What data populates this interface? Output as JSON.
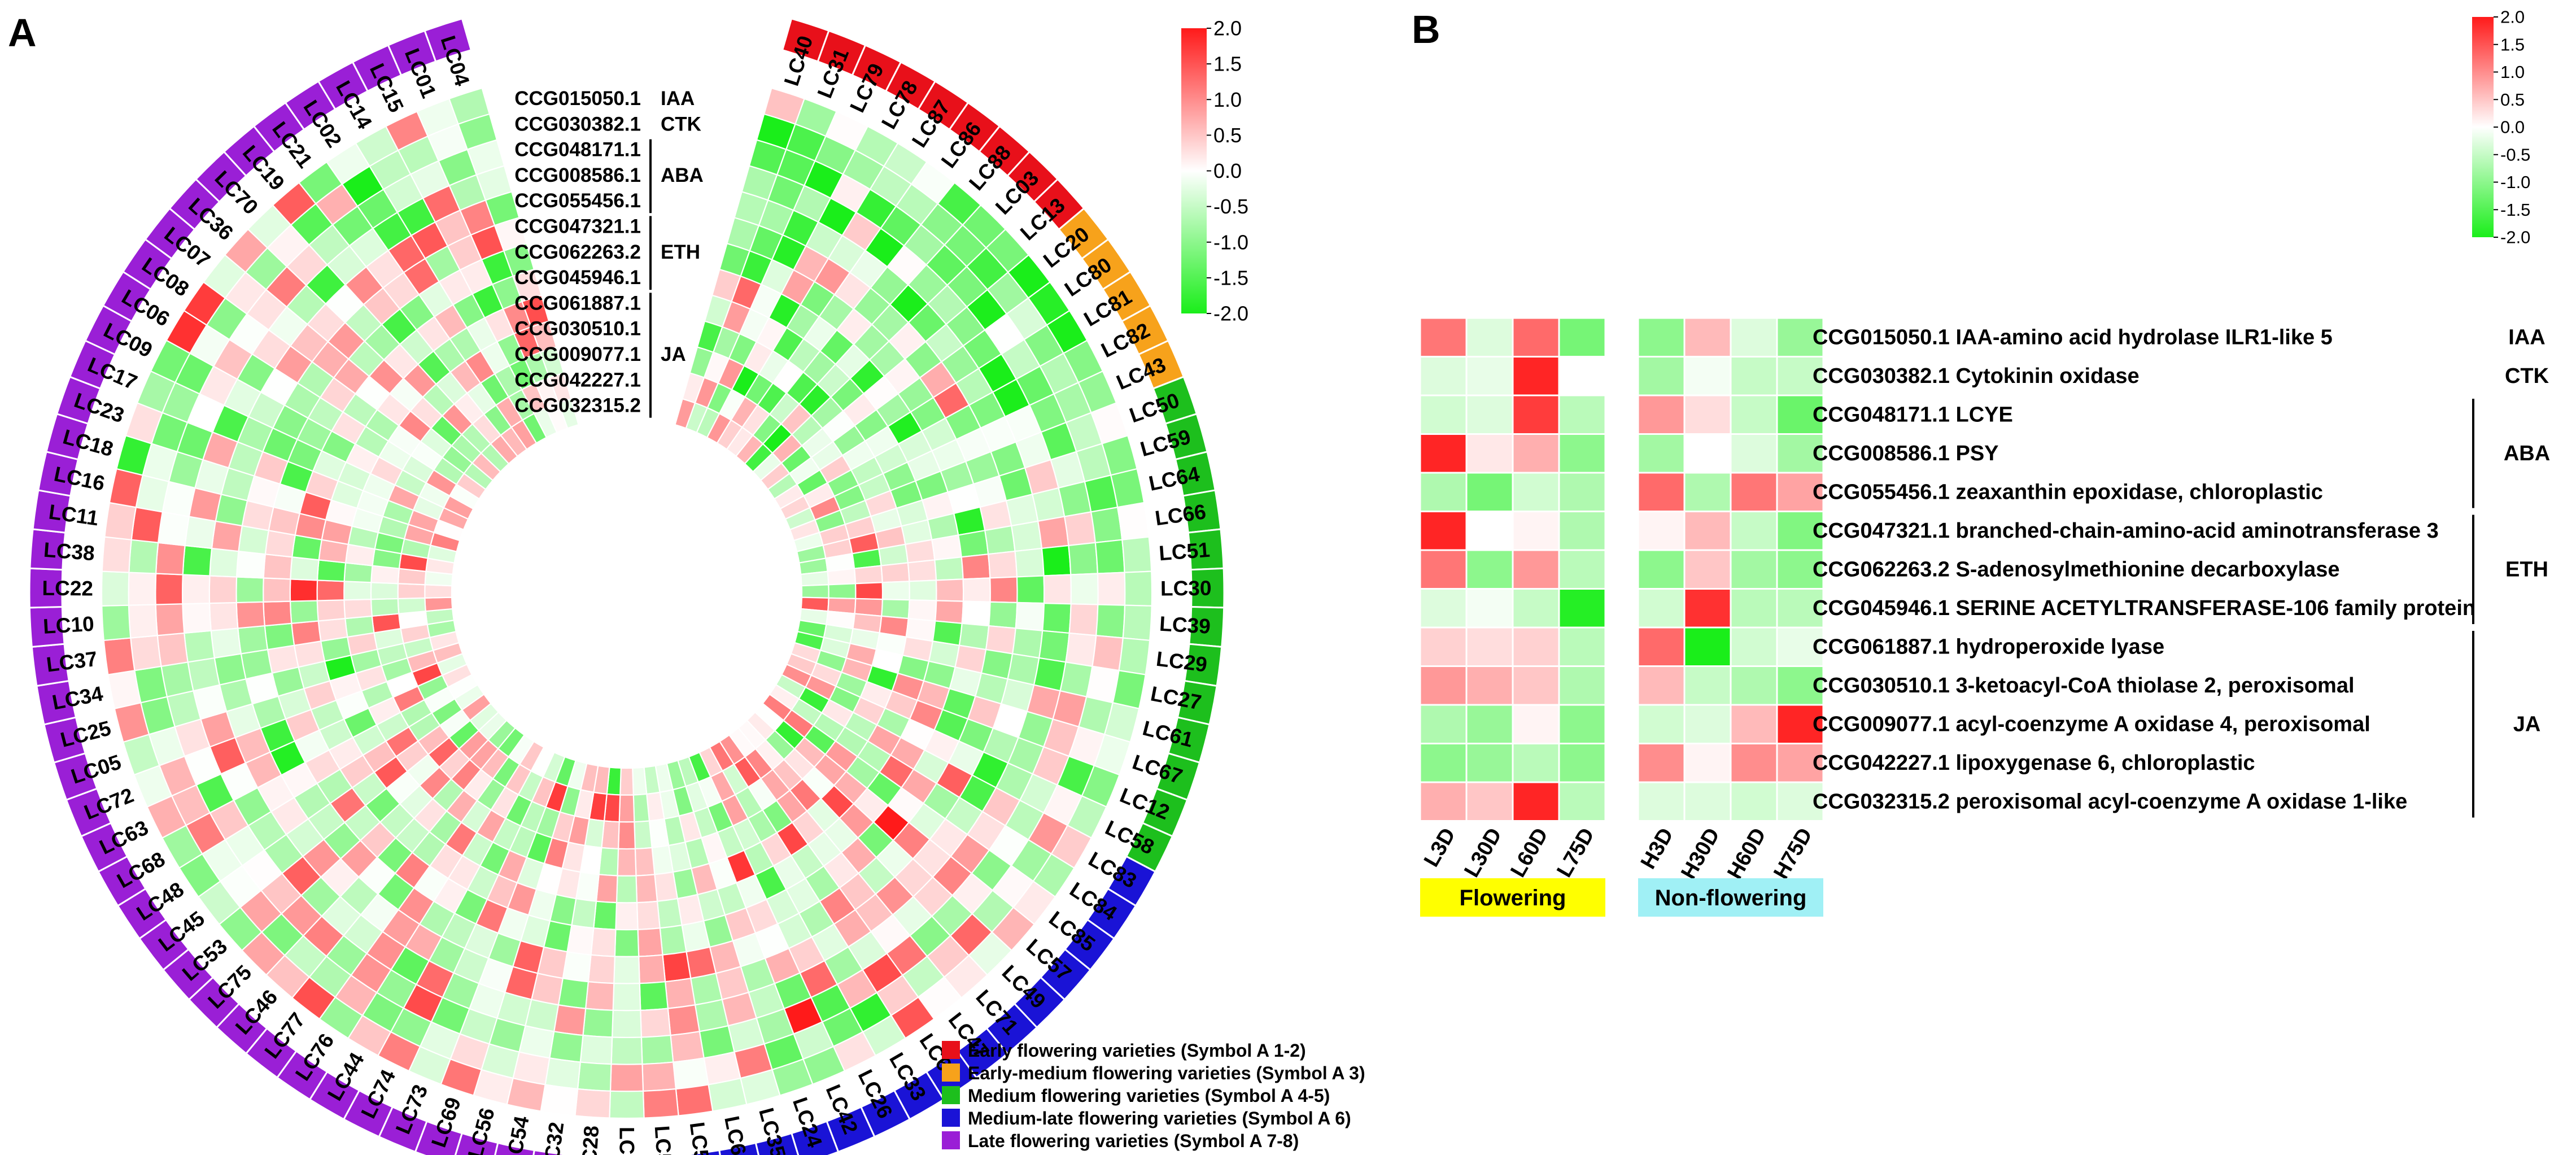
{
  "panel_a_letter": "A",
  "panel_b_letter": "B",
  "colors": {
    "early": "#e8101a",
    "early_medium": "#f7a21b",
    "medium": "#1dbf1d",
    "medium_late": "#1a13d6",
    "late": "#9a1fd6",
    "scale_high": "#ff1a1a",
    "scale_mid": "#ffffff",
    "scale_low": "#1aee1a",
    "flowering_box": "#ffff00",
    "nonflowering_box": "#a0f0f5"
  },
  "chart_data": [
    {
      "type": "heatmap",
      "layout": "circular",
      "title": "",
      "varieties": [
        {
          "name": "LC40",
          "group": "early"
        },
        {
          "name": "LC31",
          "group": "early"
        },
        {
          "name": "LC79",
          "group": "early"
        },
        {
          "name": "LC78",
          "group": "early"
        },
        {
          "name": "LC87",
          "group": "early"
        },
        {
          "name": "LC86",
          "group": "early"
        },
        {
          "name": "LC88",
          "group": "early"
        },
        {
          "name": "LC03",
          "group": "early"
        },
        {
          "name": "LC13",
          "group": "early"
        },
        {
          "name": "LC20",
          "group": "early_medium"
        },
        {
          "name": "LC80",
          "group": "early_medium"
        },
        {
          "name": "LC81",
          "group": "early_medium"
        },
        {
          "name": "LC82",
          "group": "early_medium"
        },
        {
          "name": "LC43",
          "group": "early_medium"
        },
        {
          "name": "LC50",
          "group": "medium"
        },
        {
          "name": "LC59",
          "group": "medium"
        },
        {
          "name": "LC64",
          "group": "medium"
        },
        {
          "name": "LC66",
          "group": "medium"
        },
        {
          "name": "LC51",
          "group": "medium"
        },
        {
          "name": "LC30",
          "group": "medium"
        },
        {
          "name": "LC39",
          "group": "medium"
        },
        {
          "name": "LC29",
          "group": "medium"
        },
        {
          "name": "LC27",
          "group": "medium"
        },
        {
          "name": "LC61",
          "group": "medium"
        },
        {
          "name": "LC67",
          "group": "medium"
        },
        {
          "name": "LC12",
          "group": "medium"
        },
        {
          "name": "LC58",
          "group": "medium"
        },
        {
          "name": "LC83",
          "group": "medium_late"
        },
        {
          "name": "LC84",
          "group": "medium_late"
        },
        {
          "name": "LC85",
          "group": "medium_late"
        },
        {
          "name": "LC57",
          "group": "medium_late"
        },
        {
          "name": "LC49",
          "group": "medium_late"
        },
        {
          "name": "LC71",
          "group": "medium_late"
        },
        {
          "name": "LC47",
          "group": "medium_late"
        },
        {
          "name": "LC60",
          "group": "medium_late"
        },
        {
          "name": "LC33",
          "group": "medium_late"
        },
        {
          "name": "LC26",
          "group": "medium_late"
        },
        {
          "name": "LC42",
          "group": "medium_late"
        },
        {
          "name": "LC24",
          "group": "medium_late"
        },
        {
          "name": "LC35",
          "group": "medium_late"
        },
        {
          "name": "LC65",
          "group": "medium_late"
        },
        {
          "name": "LC55",
          "group": "medium_late"
        },
        {
          "name": "LC52",
          "group": "medium_late"
        },
        {
          "name": "LC62",
          "group": "medium_late"
        },
        {
          "name": "LC28",
          "group": "late"
        },
        {
          "name": "LC32",
          "group": "late"
        },
        {
          "name": "LC54",
          "group": "late"
        },
        {
          "name": "LC56",
          "group": "late"
        },
        {
          "name": "LC69",
          "group": "late"
        },
        {
          "name": "LC73",
          "group": "late"
        },
        {
          "name": "LC74",
          "group": "late"
        },
        {
          "name": "LC44",
          "group": "late"
        },
        {
          "name": "LC76",
          "group": "late"
        },
        {
          "name": "LC77",
          "group": "late"
        },
        {
          "name": "LC46",
          "group": "late"
        },
        {
          "name": "LC75",
          "group": "late"
        },
        {
          "name": "LC53",
          "group": "late"
        },
        {
          "name": "LC45",
          "group": "late"
        },
        {
          "name": "LC48",
          "group": "late"
        },
        {
          "name": "LC68",
          "group": "late"
        },
        {
          "name": "LC63",
          "group": "late"
        },
        {
          "name": "LC72",
          "group": "late"
        },
        {
          "name": "LC05",
          "group": "late"
        },
        {
          "name": "LC25",
          "group": "late"
        },
        {
          "name": "LC34",
          "group": "late"
        },
        {
          "name": "LC37",
          "group": "late"
        },
        {
          "name": "LC10",
          "group": "late"
        },
        {
          "name": "LC22",
          "group": "late"
        },
        {
          "name": "LC38",
          "group": "late"
        },
        {
          "name": "LC11",
          "group": "late"
        },
        {
          "name": "LC16",
          "group": "late"
        },
        {
          "name": "LC18",
          "group": "late"
        },
        {
          "name": "LC23",
          "group": "late"
        },
        {
          "name": "LC17",
          "group": "late"
        },
        {
          "name": "LC09",
          "group": "late"
        },
        {
          "name": "LC06",
          "group": "late"
        },
        {
          "name": "LC08",
          "group": "late"
        },
        {
          "name": "LC07",
          "group": "late"
        },
        {
          "name": "LC36",
          "group": "late"
        },
        {
          "name": "LC70",
          "group": "late"
        },
        {
          "name": "LC19",
          "group": "late"
        },
        {
          "name": "LC21",
          "group": "late"
        },
        {
          "name": "LC02",
          "group": "late"
        },
        {
          "name": "LC14",
          "group": "late"
        },
        {
          "name": "LC15",
          "group": "late"
        },
        {
          "name": "LC01",
          "group": "late"
        },
        {
          "name": "LC04",
          "group": "late"
        }
      ],
      "genes": [
        "CCG015050.1",
        "CCG030382.1",
        "CCG048171.1",
        "CCG008586.1",
        "CCG055456.1",
        "CCG047321.1",
        "CCG062263.2",
        "CCG045946.1",
        "CCG061887.1",
        "CCG030510.1",
        "CCG009077.1",
        "CCG042227.1",
        "CCG032315.2"
      ],
      "gene_groups": [
        {
          "label": "IAA",
          "from": 0,
          "to": 0
        },
        {
          "label": "CTK",
          "from": 1,
          "to": 1
        },
        {
          "label": "ABA",
          "from": 2,
          "to": 4
        },
        {
          "label": "ETH",
          "from": 5,
          "to": 7
        },
        {
          "label": "JA",
          "from": 8,
          "to": 12
        }
      ],
      "note": "cell values are approximate z-scores estimated from the circular heatmap (reproduced as a procedurally sampled approximation)",
      "seed": 20240611,
      "legend": {
        "items": [
          {
            "group": "early",
            "label": "Early flowering varieties (Symbol A 1-2)"
          },
          {
            "group": "early_medium",
            "label": "Early-medium flowering varieties (Symbol A 3)"
          },
          {
            "group": "medium",
            "label": "Medium flowering varieties (Symbol A 4-5)"
          },
          {
            "group": "medium_late",
            "label": "Medium-late flowering varieties (Symbol A 6)"
          },
          {
            "group": "late",
            "label": "Late flowering varieties (Symbol A 7-8)"
          }
        ]
      },
      "color_scale": {
        "min": -2.0,
        "max": 2.0,
        "ticks": [
          "2.0",
          "1.5",
          "1.0",
          "0.5",
          "0.0",
          "-0.5",
          "-1.0",
          "-1.5",
          "-2.0"
        ]
      }
    },
    {
      "type": "heatmap",
      "title": "",
      "columns": [
        "L3D",
        "L30D",
        "L60D",
        "L75D",
        "H3D",
        "H30D",
        "H60D",
        "H75D"
      ],
      "column_groups": [
        {
          "label": "Flowering",
          "columns": [
            0,
            1,
            2,
            3
          ]
        },
        {
          "label": "Non-flowering",
          "columns": [
            4,
            5,
            6,
            7
          ]
        }
      ],
      "rows": [
        {
          "label": "CCG015050.1 IAA-amino acid hydrolase ILR1-like 5",
          "values": [
            1.2,
            -0.3,
            1.3,
            -1.2,
            -1.0,
            0.6,
            -0.3,
            -0.9
          ]
        },
        {
          "label": "CCG030382.1 Cytokinin oxidase",
          "values": [
            -0.3,
            -0.2,
            1.9,
            0.0,
            -0.8,
            -0.1,
            -0.5,
            -0.5
          ]
        },
        {
          "label": "CCG048171.1 LCYE",
          "values": [
            -0.4,
            -0.3,
            1.7,
            -0.6,
            0.9,
            0.3,
            -0.5,
            -1.3
          ]
        },
        {
          "label": "CCG008586.1 PSY",
          "values": [
            1.9,
            0.2,
            0.7,
            -1.0,
            -0.8,
            0.0,
            -0.3,
            -0.8
          ]
        },
        {
          "label": "CCG055456.1 zeaxanthin epoxidase, chloroplastic",
          "values": [
            -0.7,
            -1.2,
            -0.4,
            -0.7,
            1.3,
            -0.7,
            1.2,
            0.8
          ]
        },
        {
          "label": "CCG047321.1 branched-chain-amino-acid aminotransferase 3",
          "values": [
            1.9,
            0.0,
            0.1,
            -0.7,
            0.1,
            0.6,
            -0.5,
            -1.1
          ]
        },
        {
          "label": "CCG062263.2 S-adenosylmethionine decarboxylase",
          "values": [
            1.2,
            -1.0,
            0.9,
            -0.6,
            -1.0,
            0.5,
            -0.8,
            -1.0
          ]
        },
        {
          "label": "CCG045946.1 SERINE ACETYLTRANSFERASE-106 family protein",
          "values": [
            -0.3,
            -0.1,
            -0.5,
            -1.9,
            -0.4,
            1.8,
            -0.6,
            -0.6
          ]
        },
        {
          "label": "CCG061887.1 hydroperoxide lyase",
          "values": [
            0.4,
            0.3,
            0.4,
            -0.6,
            1.3,
            -2.0,
            -0.4,
            -0.2
          ]
        },
        {
          "label": "CCG030510.1 3-ketoacyl-CoA thiolase 2, peroxisomal",
          "values": [
            0.9,
            0.7,
            0.5,
            -0.7,
            0.6,
            -0.5,
            -0.7,
            -1.0
          ]
        },
        {
          "label": "CCG009077.1 acyl-coenzyme A oxidase 4, peroxisomal",
          "values": [
            -0.7,
            -0.9,
            0.1,
            -1.0,
            -0.4,
            -0.3,
            0.6,
            1.9
          ]
        },
        {
          "label": "CCG042227.1 lipoxygenase 6, chloroplastic",
          "values": [
            -1.0,
            -0.9,
            -0.6,
            -1.0,
            1.0,
            0.1,
            1.0,
            0.8
          ]
        },
        {
          "label": "CCG032315.2 peroxisomal acyl-coenzyme A oxidase 1-like",
          "values": [
            0.7,
            0.5,
            1.9,
            -0.6,
            -0.3,
            -0.3,
            -0.4,
            -0.3
          ]
        }
      ],
      "row_groups": [
        {
          "label": "IAA",
          "from": 0,
          "to": 0
        },
        {
          "label": "CTK",
          "from": 1,
          "to": 1
        },
        {
          "label": "ABA",
          "from": 2,
          "to": 4
        },
        {
          "label": "ETH",
          "from": 5,
          "to": 7
        },
        {
          "label": "JA",
          "from": 8,
          "to": 12
        }
      ],
      "color_scale": {
        "min": -2.0,
        "max": 2.0,
        "ticks": [
          "2.0",
          "1.5",
          "1.0",
          "0.5",
          "0.0",
          "-0.5",
          "-1.0",
          "-1.5",
          "-2.0"
        ]
      }
    }
  ]
}
